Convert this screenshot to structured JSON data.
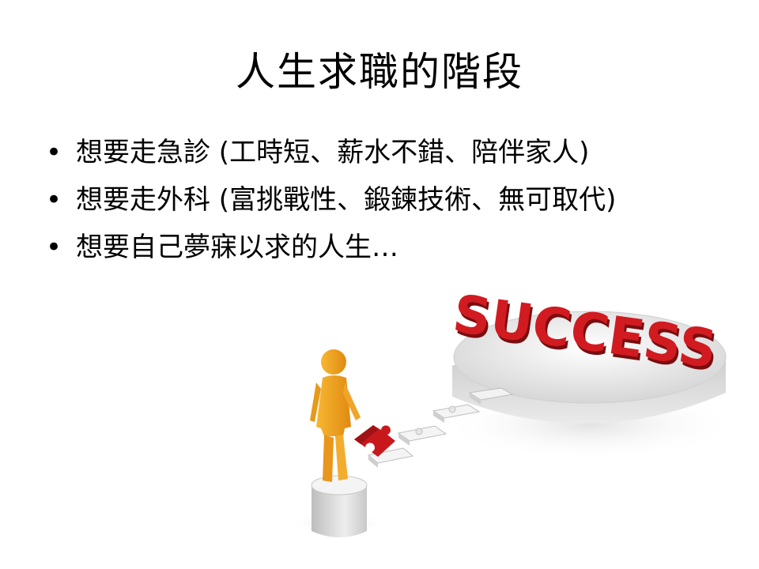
{
  "slide": {
    "title": "人生求職的階段",
    "bullets": [
      {
        "marker": "•",
        "text": "想要走急診 (工時短、薪水不錯、陪伴家人)"
      },
      {
        "marker": "•",
        "text": "想要走外科 (富挑戰性、鍛鍊技術、無可取代)"
      },
      {
        "marker": "•",
        "text": "想要自己夢寐以求的人生…"
      }
    ]
  },
  "illustration": {
    "word": "SUCCESS",
    "colors": {
      "text": "#c8181c",
      "figure": "#f0a020",
      "piece": "#c8181c"
    }
  }
}
